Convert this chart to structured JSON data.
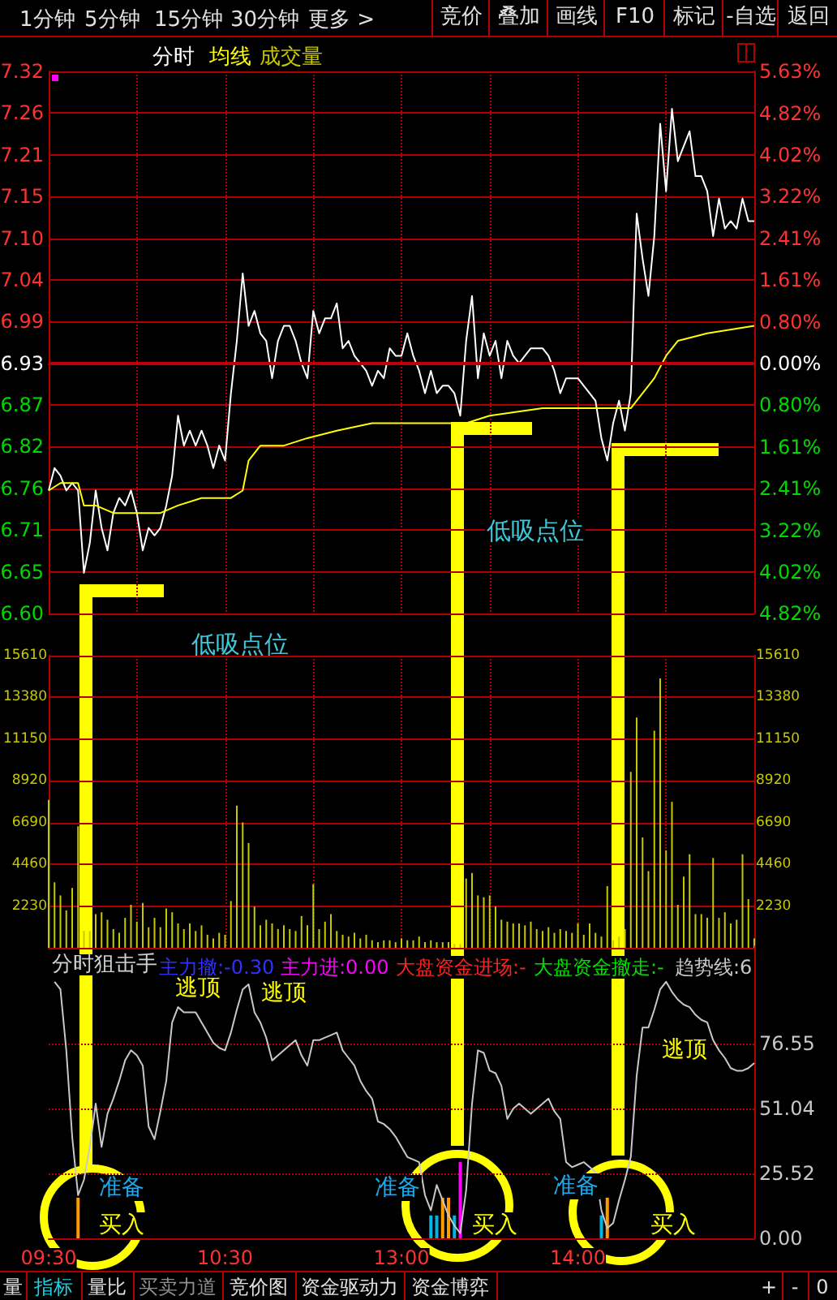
{
  "chart_data": [
    {
      "type": "other",
      "annotations": [
        "1分钟",
        "5分钟",
        "15分钟",
        "30分钟",
        "更多 >",
        "竞价",
        "叠加",
        "画线",
        "F10",
        "标记",
        "-自选",
        "返回"
      ]
    },
    {
      "type": "line",
      "marker": "none",
      "line_style": "solid",
      "grid": true,
      "legend": "top left",
      "tick_labels": "y",
      "categories": [
        null,
        null,
        null,
        null,
        null,
        null,
        null,
        null,
        null,
        null,
        null,
        null,
        null,
        null,
        null,
        null,
        null,
        null,
        null,
        null,
        null,
        null,
        null,
        null,
        null,
        null,
        null,
        null,
        null,
        null,
        null,
        null,
        null,
        null,
        null,
        null,
        null,
        null,
        null,
        null,
        null,
        null,
        null,
        null,
        null,
        null,
        null,
        null,
        null,
        null,
        null,
        null,
        null,
        null,
        null,
        null,
        null,
        null,
        null,
        null,
        null,
        null,
        null,
        null,
        null,
        null,
        null,
        null,
        null,
        null,
        null,
        null,
        null,
        null,
        null,
        null,
        null,
        null,
        null,
        null,
        null,
        null,
        null,
        null,
        null,
        null,
        null,
        null,
        null,
        null,
        null,
        null,
        null,
        null,
        null,
        null,
        null,
        null,
        null,
        null,
        null,
        null,
        null,
        null,
        null,
        null,
        null,
        null,
        null,
        null,
        null,
        null,
        null,
        null,
        null,
        null,
        null,
        null,
        null,
        null,
        null
      ],
      "ylim": [
        6.5957,
        7.32
      ],
      "yticks": [
        {
          "value": 6.5957,
          "label": "6.60"
        },
        {
          "value": 6.6514,
          "label": "6.65"
        },
        {
          "value": 6.7072,
          "label": "6.71"
        },
        {
          "value": 6.7629,
          "label": "6.76"
        },
        {
          "value": 6.8186,
          "label": "6.82"
        },
        {
          "value": 6.8743,
          "label": "6.87"
        },
        {
          "value": 6.93,
          "label": "6.93"
        },
        {
          "value": 6.9857,
          "label": "6.99"
        },
        {
          "value": 7.0414,
          "label": "7.04"
        },
        {
          "value": 7.0971,
          "label": "7.10"
        },
        {
          "value": 7.1528,
          "label": "7.15"
        },
        {
          "value": 7.2086,
          "label": "7.21"
        },
        {
          "value": 7.2643,
          "label": "7.26"
        },
        {
          "value": 7.32,
          "label": "7.32"
        }
      ],
      "y2lim": [
        -4.82,
        5.63
      ],
      "y2ticks": [
        {
          "value": -4.82,
          "label": "4.82%"
        },
        {
          "value": -4.02,
          "label": "4.02%"
        },
        {
          "value": -3.22,
          "label": "3.22%"
        },
        {
          "value": -2.41,
          "label": "2.41%"
        },
        {
          "value": -1.61,
          "label": "1.61%"
        },
        {
          "value": -0.8,
          "label": "0.80%"
        },
        {
          "value": 0,
          "label": "0.00%"
        },
        {
          "value": 0.8,
          "label": "0.80%"
        },
        {
          "value": 1.61,
          "label": "1.61%"
        },
        {
          "value": 2.41,
          "label": "2.41%"
        },
        {
          "value": 3.22,
          "label": "3.22%"
        },
        {
          "value": 4.02,
          "label": "4.02%"
        },
        {
          "value": 4.82,
          "label": "4.82%"
        },
        {
          "value": 5.63,
          "label": "5.63%"
        }
      ],
      "ref_lines": [
        {
          "axis": "y",
          "value": 6.93,
          "color": "#c00000"
        }
      ],
      "annotations": [
        "低吸点位",
        "低吸点位"
      ],
      "series": [
        {
          "name": "分时",
          "color": "#ffffff",
          "values": [
            6.76,
            6.79,
            6.78,
            6.76,
            6.77,
            6.76,
            6.65,
            6.69,
            6.76,
            6.71,
            6.68,
            6.73,
            6.75,
            6.74,
            6.76,
            6.73,
            6.68,
            6.71,
            6.7,
            6.71,
            6.74,
            6.78,
            6.86,
            6.82,
            6.84,
            6.82,
            6.84,
            6.82,
            6.79,
            6.82,
            6.8,
            6.89,
            6.96,
            7.05,
            6.98,
            7.0,
            6.97,
            6.96,
            6.91,
            6.96,
            6.98,
            6.98,
            6.96,
            6.93,
            6.91,
            7.0,
            6.97,
            6.99,
            6.99,
            7.01,
            6.95,
            6.96,
            6.94,
            6.93,
            6.92,
            6.9,
            6.92,
            6.91,
            6.95,
            6.94,
            6.94,
            6.97,
            6.94,
            6.92,
            6.89,
            6.92,
            6.89,
            6.9,
            6.9,
            6.89,
            6.86,
            6.96,
            7.02,
            6.91,
            6.97,
            6.94,
            6.96,
            6.91,
            6.96,
            6.94,
            6.93,
            6.94,
            6.95,
            6.95,
            6.95,
            6.94,
            6.92,
            6.89,
            6.91,
            6.91,
            6.91,
            6.9,
            6.89,
            6.88,
            6.83,
            6.8,
            6.85,
            6.88,
            6.84,
            6.89,
            7.13,
            7.07,
            7.02,
            7.1,
            7.25,
            7.16,
            7.27,
            7.2,
            7.22,
            7.24,
            7.18,
            7.18,
            7.16,
            7.1,
            7.15,
            7.11,
            7.12,
            7.11,
            7.15,
            7.12,
            7.12
          ]
        },
        {
          "name": "均线",
          "color": "#ffff00",
          "values": [
            6.76,
            null,
            6.77,
            null,
            null,
            6.77,
            6.74,
            null,
            6.74,
            null,
            null,
            6.73,
            null,
            null,
            null,
            null,
            null,
            null,
            null,
            6.73,
            null,
            null,
            6.74,
            null,
            null,
            null,
            6.75,
            null,
            null,
            null,
            null,
            6.75,
            null,
            6.76,
            6.8,
            null,
            6.82,
            null,
            null,
            null,
            6.82,
            null,
            null,
            null,
            6.83,
            null,
            null,
            null,
            null,
            6.84,
            null,
            null,
            null,
            null,
            null,
            6.85,
            null,
            null,
            null,
            null,
            6.85,
            null,
            null,
            null,
            null,
            null,
            null,
            null,
            null,
            null,
            null,
            6.85,
            null,
            null,
            null,
            6.86,
            null,
            null,
            null,
            null,
            null,
            null,
            null,
            null,
            6.87,
            null,
            null,
            null,
            null,
            null,
            null,
            null,
            null,
            null,
            null,
            null,
            null,
            null,
            null,
            6.87,
            null,
            6.89,
            null,
            6.91,
            null,
            6.94,
            null,
            6.96,
            null,
            null,
            null,
            null,
            6.97,
            null,
            null,
            null,
            null,
            null,
            null,
            null,
            6.98
          ]
        }
      ]
    },
    {
      "type": "bar",
      "grid": true,
      "legend": "top left",
      "tick_labels": "y",
      "categories": [
        null,
        null,
        null,
        null,
        null,
        null,
        null,
        null,
        null,
        null,
        null,
        null,
        null,
        null,
        null,
        null,
        null,
        null,
        null,
        null,
        null,
        null,
        null,
        null,
        null,
        null,
        null,
        null,
        null,
        null,
        null,
        null,
        null,
        null,
        null,
        null,
        null,
        null,
        null,
        null,
        null,
        null,
        null,
        null,
        null,
        null,
        null,
        null,
        null,
        null,
        null,
        null,
        null,
        null,
        null,
        null,
        null,
        null,
        null,
        null,
        null,
        null,
        null,
        null,
        null,
        null,
        null,
        null,
        null,
        null,
        null,
        null,
        null,
        null,
        null,
        null,
        null,
        null,
        null,
        null,
        null,
        null,
        null,
        null,
        null,
        null,
        null,
        null,
        null,
        null,
        null,
        null,
        null,
        null,
        null,
        null,
        null,
        null,
        null,
        null,
        null,
        null,
        null,
        null,
        null,
        null,
        null,
        null,
        null,
        null,
        null,
        null,
        null,
        null,
        null,
        null,
        null,
        null,
        null,
        null,
        null
      ],
      "ylim": [
        0,
        15610
      ],
      "yticks": [
        2230,
        4460,
        6690,
        8920,
        11150,
        13380,
        15610
      ],
      "y2lim": [
        0,
        15610
      ],
      "y2ticks": [
        2230,
        4460,
        6690,
        8920,
        11150,
        13380,
        15610
      ],
      "series": [
        {
          "name": "成交量",
          "color": "#c8c800",
          "values": [
            7900,
            3500,
            2800,
            2000,
            3200,
            6500,
            900,
            900,
            1800,
            1900,
            1500,
            1000,
            800,
            1600,
            2300,
            1400,
            2400,
            1100,
            1600,
            1100,
            2100,
            1900,
            1300,
            1000,
            1300,
            900,
            1200,
            700,
            500,
            800,
            700,
            2500,
            7600,
            6700,
            5600,
            2200,
            1200,
            1500,
            1300,
            1000,
            1200,
            1000,
            900,
            1700,
            1200,
            3400,
            1000,
            1400,
            1800,
            900,
            700,
            600,
            800,
            500,
            700,
            400,
            300,
            400,
            400,
            300,
            500,
            400,
            400,
            600,
            300,
            400,
            300,
            300,
            300,
            200,
            200,
            3700,
            4000,
            2800,
            2700,
            2800,
            2200,
            1500,
            1400,
            1300,
            1300,
            1200,
            1400,
            1000,
            900,
            1100,
            800,
            1000,
            900,
            800,
            1300,
            700,
            1300,
            800,
            600,
            3300,
            400,
            600,
            1000,
            9400,
            12300,
            5900,
            4100,
            11600,
            14400,
            5200,
            7800,
            2300,
            3800,
            5000,
            1800,
            1800,
            1600,
            4800,
            1600,
            1900,
            1300,
            1500,
            5000,
            2600,
            500
          ]
        }
      ]
    },
    {
      "type": "line",
      "marker": "none",
      "line_style": "solid",
      "grid": "y",
      "title": "分时狙击手",
      "categories": [
        "09:30",
        null,
        null,
        null,
        null,
        null,
        null,
        null,
        null,
        null,
        null,
        null,
        null,
        null,
        null,
        null,
        null,
        null,
        null,
        null,
        null,
        null,
        null,
        null,
        null,
        null,
        null,
        null,
        null,
        null,
        "10:30",
        null,
        null,
        null,
        null,
        null,
        null,
        null,
        null,
        null,
        null,
        null,
        null,
        null,
        null,
        null,
        null,
        null,
        null,
        null,
        null,
        null,
        null,
        null,
        null,
        null,
        null,
        null,
        null,
        null,
        "13:00",
        null,
        null,
        null,
        null,
        null,
        null,
        null,
        null,
        null,
        null,
        null,
        null,
        null,
        null,
        null,
        null,
        null,
        null,
        null,
        null,
        null,
        null,
        null,
        null,
        null,
        null,
        null,
        null,
        null,
        "14:00",
        null,
        null,
        null,
        null,
        null,
        null,
        null,
        null,
        null,
        null,
        null,
        null,
        null,
        null,
        null,
        null,
        null,
        null,
        null,
        null,
        null,
        null,
        null,
        null,
        null,
        null,
        null,
        null,
        null,
        null
      ],
      "ylim": [
        0,
        115
      ],
      "yticks": [
        {
          "value": 0,
          "label": "0.00"
        },
        25.52,
        51.04,
        76.55
      ],
      "annotations": [
        "主力撤:-0.30",
        "主力进:0.00",
        "大盘资金进场:-",
        "大盘资金撤走:-",
        "趋势线:6",
        "逃顶",
        "逃顶",
        "逃顶",
        "准备",
        "准备",
        "准备",
        "买入",
        "买入",
        "买入"
      ],
      "series": [
        {
          "color": "#c8c8c8",
          "values": [
            null,
            101,
            98,
            74,
            40,
            17,
            23,
            36,
            53,
            36,
            49,
            55,
            62,
            70,
            74,
            72,
            68,
            44,
            39,
            50,
            62,
            85,
            91,
            89,
            89,
            89,
            85,
            81,
            77,
            75,
            74,
            81,
            90,
            98,
            100,
            89,
            85,
            79,
            70,
            72,
            74,
            76,
            78,
            72,
            68,
            78,
            78,
            79,
            80,
            81,
            74,
            71,
            68,
            62,
            58,
            55,
            46,
            45,
            43,
            40,
            36,
            32,
            31,
            30,
            17,
            11,
            21,
            15,
            9,
            5,
            2,
            19,
            53,
            74,
            73,
            66,
            65,
            60,
            47,
            51,
            53,
            51,
            49,
            51,
            53,
            55,
            50,
            47,
            30,
            28,
            29,
            30,
            28,
            26,
            11,
            4,
            6,
            15,
            23,
            32,
            64,
            83,
            83,
            90,
            98,
            101,
            97,
            94,
            92,
            91,
            88,
            86,
            85,
            78,
            74,
            71,
            67,
            66,
            66,
            67,
            69
          ]
        },
        {
          "type": "bar",
          "color": "#00b4e6",
          "values": [
            null,
            null,
            null,
            null,
            null,
            null,
            null,
            null,
            null,
            null,
            null,
            null,
            null,
            null,
            null,
            null,
            null,
            null,
            null,
            null,
            null,
            null,
            null,
            null,
            null,
            null,
            null,
            null,
            null,
            null,
            null,
            null,
            null,
            null,
            null,
            null,
            null,
            null,
            null,
            null,
            null,
            null,
            null,
            null,
            null,
            null,
            null,
            null,
            null,
            null,
            null,
            null,
            null,
            null,
            null,
            null,
            null,
            null,
            null,
            null,
            null,
            null,
            null,
            null,
            null,
            9,
            9,
            null,
            null,
            9,
            null,
            null,
            null,
            null,
            null,
            null,
            null,
            null,
            null,
            null,
            null,
            null,
            null,
            null,
            null,
            null,
            null,
            null,
            null,
            null,
            null,
            null,
            null,
            null,
            9,
            null,
            null,
            null,
            null,
            null,
            null,
            null,
            null,
            null,
            null,
            null,
            null,
            null,
            null,
            null,
            null,
            null,
            null,
            null,
            null,
            null,
            null,
            null,
            null,
            null,
            null
          ]
        },
        {
          "type": "bar",
          "color": "#ff9a00",
          "values": [
            null,
            null,
            null,
            null,
            null,
            16,
            null,
            null,
            null,
            null,
            null,
            null,
            null,
            null,
            null,
            null,
            null,
            null,
            null,
            null,
            null,
            null,
            null,
            null,
            null,
            null,
            null,
            null,
            null,
            null,
            null,
            null,
            null,
            null,
            null,
            null,
            null,
            null,
            null,
            null,
            null,
            null,
            null,
            null,
            null,
            null,
            null,
            null,
            null,
            null,
            null,
            null,
            null,
            null,
            null,
            null,
            null,
            null,
            null,
            null,
            null,
            null,
            null,
            null,
            null,
            null,
            null,
            16,
            16,
            null,
            null,
            null,
            null,
            null,
            null,
            null,
            null,
            null,
            null,
            null,
            null,
            null,
            null,
            null,
            null,
            null,
            null,
            null,
            null,
            null,
            null,
            null,
            null,
            null,
            null,
            16,
            null,
            null,
            null,
            null,
            null,
            null,
            null,
            null,
            null,
            null,
            null,
            null,
            null,
            null,
            null,
            null,
            null,
            null,
            null,
            null,
            null,
            null,
            null,
            null,
            null
          ]
        },
        {
          "type": "bar",
          "color": "#ff00ff",
          "values": [
            null,
            null,
            null,
            null,
            null,
            null,
            null,
            null,
            null,
            null,
            null,
            null,
            null,
            null,
            null,
            null,
            null,
            null,
            null,
            null,
            null,
            null,
            null,
            null,
            null,
            null,
            null,
            null,
            null,
            null,
            null,
            null,
            null,
            null,
            null,
            null,
            null,
            null,
            null,
            null,
            null,
            null,
            null,
            null,
            null,
            null,
            null,
            null,
            null,
            null,
            null,
            null,
            null,
            null,
            null,
            null,
            null,
            null,
            null,
            null,
            null,
            null,
            null,
            null,
            null,
            null,
            null,
            null,
            null,
            null,
            30,
            null,
            null,
            null,
            null,
            null,
            null,
            null,
            null,
            null,
            null,
            null,
            null,
            null,
            null,
            null,
            null,
            null,
            null,
            null,
            null,
            null,
            null,
            null,
            null,
            null,
            null,
            null,
            null,
            null,
            null,
            null,
            null,
            null,
            null,
            null,
            null,
            null,
            null,
            null,
            null,
            null,
            null,
            null,
            null,
            null,
            null,
            null,
            null,
            null,
            null
          ]
        }
      ]
    },
    {
      "type": "other",
      "annotations": [
        "量",
        "指标",
        "量比",
        "买卖力道",
        "竞价图",
        "资金驱动力",
        "资金博弈",
        "+",
        "-",
        "0"
      ]
    }
  ]
}
